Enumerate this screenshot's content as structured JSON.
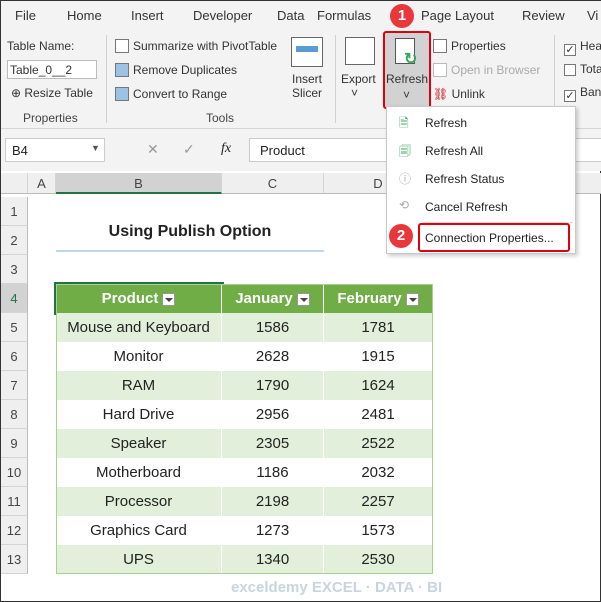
{
  "tabs": [
    "File",
    "Home",
    "Insert",
    "Developer",
    "Data",
    "Formulas",
    "Page Layout",
    "Review",
    "Vi"
  ],
  "ribbon": {
    "table_name_label": "Table Name:",
    "table_name_value": "Table_0__2",
    "resize_table": "Resize Table",
    "properties_group": "Properties",
    "summarize": "Summarize with PivotTable",
    "remove_duplicates": "Remove Duplicates",
    "convert_to_range": "Convert to Range",
    "insert_slicer_1": "Insert",
    "insert_slicer_2": "Slicer",
    "tools_group": "Tools",
    "export": "Export",
    "refresh": "Refresh",
    "properties": "Properties",
    "open_in_browser": "Open in Browser",
    "unlink": "Unlink",
    "header_row": "Hea",
    "total_row": "Tota",
    "banded_rows": "Ban"
  },
  "formula_bar": {
    "name_box": "B4",
    "fx": "fx",
    "value": "Product"
  },
  "columns": [
    "A",
    "B",
    "C",
    "D"
  ],
  "rows": [
    "1",
    "2",
    "3",
    "4",
    "5",
    "6",
    "7",
    "8",
    "9",
    "10",
    "11",
    "12",
    "13"
  ],
  "sheet": {
    "title": "Using Publish Option",
    "headers": [
      "Product",
      "January",
      "February"
    ],
    "data": [
      [
        "Mouse and Keyboard",
        "1586",
        "1781"
      ],
      [
        "Monitor",
        "2628",
        "1915"
      ],
      [
        "RAM",
        "1790",
        "1624"
      ],
      [
        "Hard Drive",
        "2956",
        "2481"
      ],
      [
        "Speaker",
        "2305",
        "2522"
      ],
      [
        "Motherboard",
        "1186",
        "2032"
      ],
      [
        "Processor",
        "2198",
        "2257"
      ],
      [
        "Graphics Card",
        "1273",
        "1573"
      ],
      [
        "UPS",
        "1340",
        "2530"
      ]
    ]
  },
  "menu": {
    "refresh": "Refresh",
    "refresh_all": "Refresh All",
    "refresh_status": "Refresh Status",
    "cancel_refresh": "Cancel Refresh",
    "connection_properties": "Connection Properties..."
  },
  "badges": [
    "1",
    "2"
  ],
  "watermark": "exceldemy EXCEL · DATA · BI",
  "colors": {
    "header_green": "#70ad47",
    "band": "#e2efda",
    "highlight": "#e0000d"
  }
}
